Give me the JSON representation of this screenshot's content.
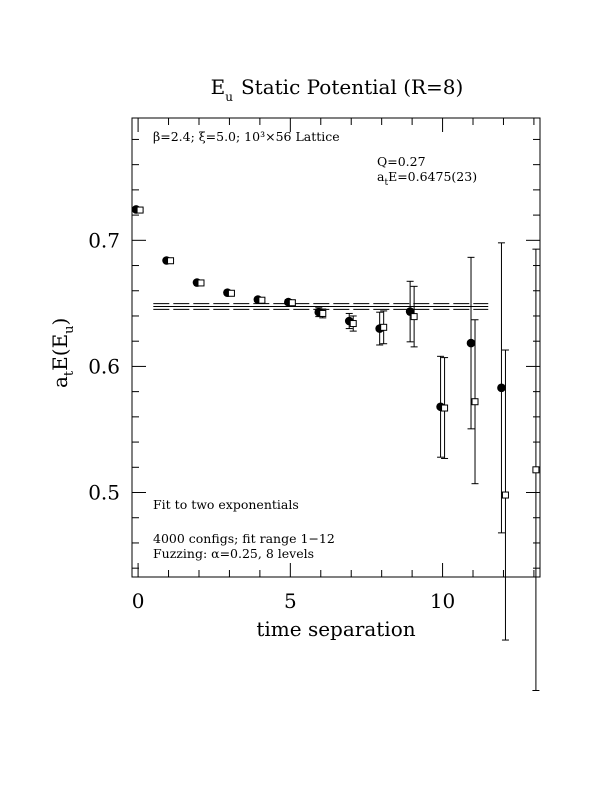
{
  "chart_data": {
    "type": "scatter",
    "title_main": "E",
    "title_sub": "u",
    "title_rest": "Static Potential (R=8)",
    "xlabel": "time separation",
    "ylabel_main": "a",
    "ylabel_sub1": "t",
    "ylabel_mid": "E(E",
    "ylabel_sub2": "u",
    "ylabel_end": ")",
    "xlim": [
      -0.2,
      13.2
    ],
    "ylim": [
      0.433,
      0.797
    ],
    "x_ticks": [
      {
        "value": 0,
        "label": "0"
      },
      {
        "value": 5,
        "label": "5"
      },
      {
        "value": 10,
        "label": "10"
      }
    ],
    "y_ticks": [
      {
        "value": 0.5,
        "label": "0.5"
      },
      {
        "value": 0.6,
        "label": "0.6"
      },
      {
        "value": 0.7,
        "label": "0.7"
      }
    ],
    "annotations": {
      "lattice": "β=2.4; ξ=5.0; 10³×56 Lattice",
      "q_value": "Q=0.27",
      "energy_main": "a",
      "energy_sub": "t",
      "energy_rest": "E=0.6475(23)",
      "fit_type": "Fit to two exponentials",
      "configs": "4000 configs; fit range 1−12",
      "fuzzing": "Fuzzing: α=0.25, 8 levels"
    },
    "fit": {
      "value": 0.6475,
      "error": 0.0023,
      "x_range": [
        0.5,
        11.5
      ]
    },
    "series": [
      {
        "marker": "filled-circle",
        "x": [
          0,
          1,
          2,
          3,
          4,
          5,
          6,
          7,
          8,
          9,
          10,
          11,
          12
        ],
        "y": [
          0.7245,
          0.684,
          0.6665,
          0.6585,
          0.653,
          0.651,
          0.643,
          0.636,
          0.63,
          0.6435,
          0.568,
          0.6185,
          0.583
        ],
        "err": [
          0.001,
          0.001,
          0.001,
          0.0012,
          0.0015,
          0.002,
          0.0035,
          0.006,
          0.013,
          0.024,
          0.04,
          0.068,
          0.115
        ]
      },
      {
        "marker": "open-square",
        "x": [
          0,
          1,
          2,
          3,
          4,
          5,
          6,
          7,
          8,
          9,
          10,
          11,
          12,
          13
        ],
        "y": [
          0.724,
          0.6838,
          0.6662,
          0.658,
          0.6525,
          0.6505,
          0.642,
          0.634,
          0.631,
          0.6395,
          0.567,
          0.572,
          0.498,
          0.518
        ],
        "err": [
          0.001,
          0.001,
          0.001,
          0.0012,
          0.0015,
          0.002,
          0.0035,
          0.006,
          0.013,
          0.024,
          0.04,
          0.065,
          0.115,
          0.175
        ]
      }
    ]
  }
}
